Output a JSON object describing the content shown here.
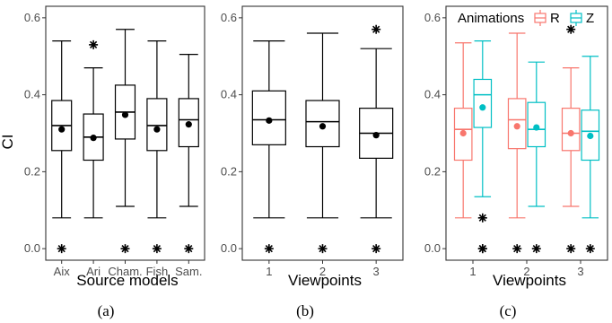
{
  "chart_data": [
    {
      "type": "box",
      "caption": "(a)",
      "xlabel": "Source models",
      "ylabel": "CI",
      "ylim": [
        -0.03,
        0.63
      ],
      "yticks": [
        "0.0",
        "0.2",
        "0.4",
        "0.6"
      ],
      "categories": [
        "Aix",
        "Ari",
        "Cham.",
        "Fish",
        "Sam."
      ],
      "series": [
        {
          "color": "#000000",
          "boxes": [
            {
              "min": 0.08,
              "q1": 0.255,
              "median": 0.32,
              "q3": 0.385,
              "max": 0.54,
              "mean": 0.31,
              "outliers": [
                0.0
              ]
            },
            {
              "min": 0.08,
              "q1": 0.23,
              "median": 0.29,
              "q3": 0.35,
              "max": 0.47,
              "mean": 0.288,
              "outliers": [
                0.53
              ]
            },
            {
              "min": 0.11,
              "q1": 0.285,
              "median": 0.355,
              "q3": 0.425,
              "max": 0.57,
              "mean": 0.348,
              "outliers": [
                0.0
              ]
            },
            {
              "min": 0.08,
              "q1": 0.255,
              "median": 0.32,
              "q3": 0.39,
              "max": 0.54,
              "mean": 0.31,
              "outliers": [
                0.0
              ]
            },
            {
              "min": 0.11,
              "q1": 0.265,
              "median": 0.335,
              "q3": 0.39,
              "max": 0.505,
              "mean": 0.323,
              "outliers": [
                0.0
              ]
            }
          ]
        }
      ]
    },
    {
      "type": "box",
      "caption": "(b)",
      "xlabel": "Viewpoints",
      "ylabel": "",
      "ylim": [
        -0.03,
        0.63
      ],
      "yticks": [
        "0.0",
        "0.2",
        "0.4",
        "0.6"
      ],
      "categories": [
        "1",
        "2",
        "3"
      ],
      "series": [
        {
          "color": "#000000",
          "boxes": [
            {
              "min": 0.08,
              "q1": 0.27,
              "median": 0.335,
              "q3": 0.41,
              "max": 0.54,
              "mean": 0.333,
              "outliers": [
                0.0
              ]
            },
            {
              "min": 0.08,
              "q1": 0.265,
              "median": 0.33,
              "q3": 0.385,
              "max": 0.56,
              "mean": 0.318,
              "outliers": [
                0.0
              ]
            },
            {
              "min": 0.08,
              "q1": 0.235,
              "median": 0.3,
              "q3": 0.365,
              "max": 0.52,
              "mean": 0.295,
              "outliers": [
                0.0,
                0.57
              ]
            }
          ]
        }
      ]
    },
    {
      "type": "box",
      "caption": "(c)",
      "xlabel": "Viewpoints",
      "ylabel": "",
      "ylim": [
        -0.03,
        0.63
      ],
      "yticks": [
        "0.0",
        "0.2",
        "0.4",
        "0.6"
      ],
      "categories": [
        "1",
        "2",
        "3"
      ],
      "legend": {
        "title": "Animations",
        "position": "top"
      },
      "series": [
        {
          "name": "R",
          "color": "#F8766D",
          "boxes": [
            {
              "min": 0.08,
              "q1": 0.23,
              "median": 0.31,
              "q3": 0.365,
              "max": 0.535,
              "mean": 0.3,
              "outliers": []
            },
            {
              "min": 0.08,
              "q1": 0.26,
              "median": 0.335,
              "q3": 0.39,
              "max": 0.56,
              "mean": 0.318,
              "outliers": []
            },
            {
              "min": 0.11,
              "q1": 0.255,
              "median": 0.3,
              "q3": 0.365,
              "max": 0.47,
              "mean": 0.3,
              "outliers": []
            }
          ]
        },
        {
          "name": "Z",
          "color": "#00BFC4",
          "boxes": [
            {
              "min": 0.135,
              "q1": 0.315,
              "median": 0.4,
              "q3": 0.44,
              "max": 0.54,
              "mean": 0.367,
              "outliers": [
                0.0,
                0.08
              ]
            },
            {
              "min": 0.11,
              "q1": 0.265,
              "median": 0.31,
              "q3": 0.38,
              "max": 0.485,
              "mean": 0.315,
              "outliers": [
                0.0
              ]
            },
            {
              "min": 0.08,
              "q1": 0.23,
              "median": 0.305,
              "q3": 0.36,
              "max": 0.5,
              "mean": 0.293,
              "outliers": [
                0.0
              ]
            }
          ]
        }
      ],
      "outliers_black": [
        {
          "category": 0,
          "value": 0.0,
          "series": 1
        },
        {
          "category": 1,
          "value": 0.0,
          "series": 0
        },
        {
          "category": 2,
          "value": 0.0,
          "series": 0
        },
        {
          "category": 2,
          "value": 0.57,
          "series": 0
        }
      ]
    }
  ]
}
